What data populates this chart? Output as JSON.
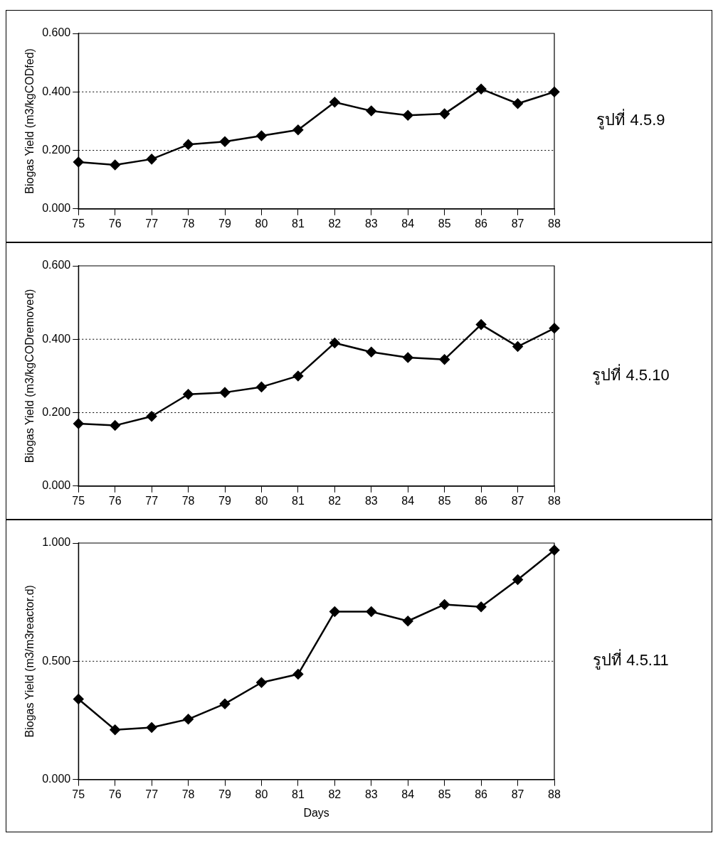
{
  "chart_data": [
    {
      "type": "line",
      "annotations": [
        "รูปที่ 4.5.9"
      ],
      "ylabel": "Biogas Yield (m3/kgCODfed)",
      "categories": [
        "75",
        "76",
        "77",
        "78",
        "79",
        "80",
        "81",
        "82",
        "83",
        "84",
        "85",
        "86",
        "87",
        "88"
      ],
      "series": [
        {
          "color": "#000000",
          "values": [
            0.16,
            0.15,
            0.17,
            0.22,
            0.23,
            0.25,
            0.27,
            0.365,
            0.335,
            0.32,
            0.325,
            0.41,
            0.36,
            0.4
          ]
        }
      ],
      "ylim": [
        0,
        0.6
      ],
      "yticks": [
        {
          "value": 0,
          "label": "0.000"
        },
        {
          "value": 0.2,
          "label": "0.200"
        },
        {
          "value": 0.4,
          "label": "0.400"
        },
        {
          "value": 0.6,
          "label": "0.600"
        }
      ],
      "grid": "y",
      "marker": "diamond",
      "line_style": "solid",
      "legend": false
    },
    {
      "type": "line",
      "annotations": [
        "รูปที่ 4.5.10"
      ],
      "ylabel": "Biogas Yield (m3/kgCODremoved)",
      "categories": [
        "75",
        "76",
        "77",
        "78",
        "79",
        "80",
        "81",
        "82",
        "83",
        "84",
        "85",
        "86",
        "87",
        "88"
      ],
      "series": [
        {
          "color": "#000000",
          "values": [
            0.17,
            0.165,
            0.19,
            0.25,
            0.255,
            0.27,
            0.3,
            0.39,
            0.365,
            0.35,
            0.345,
            0.44,
            0.38,
            0.43
          ]
        }
      ],
      "ylim": [
        0,
        0.6
      ],
      "yticks": [
        {
          "value": 0,
          "label": "0.000"
        },
        {
          "value": 0.2,
          "label": "0.200"
        },
        {
          "value": 0.4,
          "label": "0.400"
        },
        {
          "value": 0.6,
          "label": "0.600"
        }
      ],
      "grid": "y",
      "marker": "diamond",
      "line_style": "solid",
      "legend": false
    },
    {
      "type": "line",
      "annotations": [
        "รูปที่ 4.5.11"
      ],
      "ylabel": "Biogas Yield (m3/m3reactor.d)",
      "xlabel": "Days",
      "categories": [
        "75",
        "76",
        "77",
        "78",
        "79",
        "80",
        "81",
        "82",
        "83",
        "84",
        "85",
        "86",
        "87",
        "88"
      ],
      "series": [
        {
          "color": "#000000",
          "values": [
            0.34,
            0.21,
            0.22,
            0.255,
            0.32,
            0.41,
            0.445,
            0.71,
            0.71,
            0.67,
            0.74,
            0.73,
            0.845,
            0.97
          ]
        }
      ],
      "ylim": [
        0,
        1
      ],
      "yticks": [
        {
          "value": 0,
          "label": "0.000"
        },
        {
          "value": 0.5,
          "label": "0.500"
        },
        {
          "value": 1,
          "label": "1.000"
        }
      ],
      "grid": "y",
      "marker": "diamond",
      "line_style": "solid",
      "legend": false
    }
  ]
}
